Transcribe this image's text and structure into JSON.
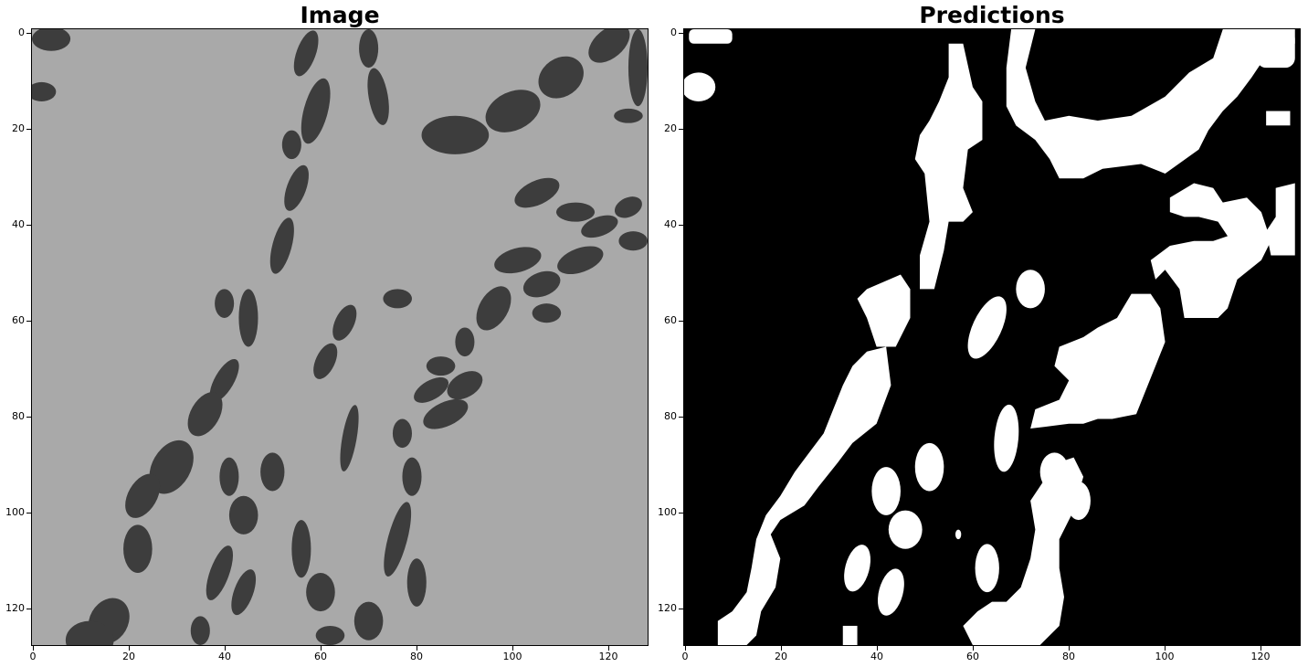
{
  "panels": [
    {
      "title": "Image",
      "kind": "grayscale",
      "background_color": "#a9a9a9",
      "foreground_color": "#2a2a2a",
      "x_ticks": [
        "0",
        "20",
        "40",
        "60",
        "80",
        "100",
        "120"
      ],
      "y_ticks": [
        "0",
        "20",
        "40",
        "60",
        "80",
        "100",
        "120"
      ],
      "axis_range": [
        0,
        128
      ]
    },
    {
      "title": "Predictions",
      "kind": "binary-mask",
      "background_color": "#000000",
      "foreground_color": "#ffffff",
      "x_ticks": [
        "0",
        "20",
        "40",
        "60",
        "80",
        "100",
        "120"
      ],
      "y_ticks": [
        "0",
        "20",
        "40",
        "60",
        "80",
        "100",
        "120"
      ],
      "axis_range": [
        0,
        128
      ]
    }
  ]
}
